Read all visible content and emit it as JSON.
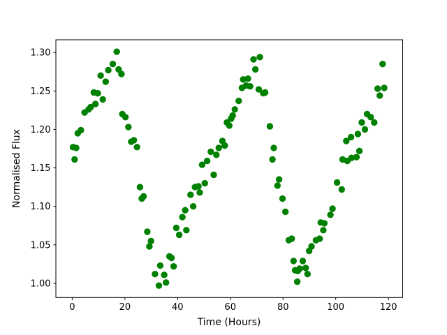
{
  "figure": {
    "background": "#ffffff"
  },
  "chart_data": {
    "type": "scatter",
    "title": "",
    "xlabel": "Time (Hours)",
    "ylabel": "Normalised Flux",
    "marker_color": "#008000",
    "marker_shape": "circle",
    "grid": false,
    "legend": "none",
    "xticks": [
      0,
      20,
      40,
      60,
      80,
      100,
      120
    ],
    "yticks": [
      1.0,
      1.05,
      1.1,
      1.15,
      1.2,
      1.25,
      1.3
    ],
    "xlim": [
      -6.2,
      125.4
    ],
    "ylim": [
      0.9815,
      1.3165
    ],
    "x_unit": "hours",
    "y_unit": "normalised flux",
    "points": [
      [
        0.3,
        1.177
      ],
      [
        0.9,
        1.161
      ],
      [
        1.5,
        1.176
      ],
      [
        2.1,
        1.195
      ],
      [
        3.3,
        1.199
      ],
      [
        4.7,
        1.222
      ],
      [
        6.2,
        1.226
      ],
      [
        7.0,
        1.229
      ],
      [
        8.2,
        1.248
      ],
      [
        8.8,
        1.233
      ],
      [
        9.7,
        1.247
      ],
      [
        10.8,
        1.27
      ],
      [
        11.6,
        1.239
      ],
      [
        12.7,
        1.262
      ],
      [
        13.7,
        1.277
      ],
      [
        15.4,
        1.285
      ],
      [
        16.9,
        1.301
      ],
      [
        17.6,
        1.278
      ],
      [
        18.7,
        1.272
      ],
      [
        19.0,
        1.22
      ],
      [
        20.2,
        1.216
      ],
      [
        21.3,
        1.203
      ],
      [
        22.4,
        1.184
      ],
      [
        23.4,
        1.186
      ],
      [
        24.6,
        1.177
      ],
      [
        25.7,
        1.125
      ],
      [
        26.4,
        1.11
      ],
      [
        27.1,
        1.113
      ],
      [
        28.5,
        1.067
      ],
      [
        29.3,
        1.048
      ],
      [
        29.9,
        1.055
      ],
      [
        31.4,
        1.012
      ],
      [
        32.9,
        0.997
      ],
      [
        33.4,
        1.023
      ],
      [
        34.9,
        1.011
      ],
      [
        35.6,
        1.001
      ],
      [
        36.9,
        1.035
      ],
      [
        37.7,
        1.033
      ],
      [
        38.5,
        1.022
      ],
      [
        39.5,
        1.072
      ],
      [
        40.6,
        1.063
      ],
      [
        41.8,
        1.086
      ],
      [
        42.9,
        1.095
      ],
      [
        43.3,
        1.069
      ],
      [
        44.9,
        1.115
      ],
      [
        45.9,
        1.1
      ],
      [
        46.6,
        1.125
      ],
      [
        47.9,
        1.126
      ],
      [
        48.4,
        1.118
      ],
      [
        49.3,
        1.154
      ],
      [
        50.3,
        1.13
      ],
      [
        51.2,
        1.159
      ],
      [
        52.6,
        1.171
      ],
      [
        53.7,
        1.141
      ],
      [
        54.7,
        1.167
      ],
      [
        55.6,
        1.176
      ],
      [
        57.0,
        1.185
      ],
      [
        57.9,
        1.179
      ],
      [
        58.7,
        1.209
      ],
      [
        59.6,
        1.205
      ],
      [
        60.3,
        1.214
      ],
      [
        60.9,
        1.218
      ],
      [
        61.7,
        1.226
      ],
      [
        63.2,
        1.237
      ],
      [
        64.4,
        1.254
      ],
      [
        64.9,
        1.265
      ],
      [
        66.0,
        1.257
      ],
      [
        66.7,
        1.266
      ],
      [
        67.5,
        1.256
      ],
      [
        68.8,
        1.291
      ],
      [
        69.5,
        1.278
      ],
      [
        71.2,
        1.294
      ],
      [
        70.8,
        1.252
      ],
      [
        72.5,
        1.247
      ],
      [
        73.2,
        1.248
      ],
      [
        75.0,
        1.204
      ],
      [
        76.0,
        1.161
      ],
      [
        76.5,
        1.176
      ],
      [
        77.9,
        1.127
      ],
      [
        78.5,
        1.135
      ],
      [
        79.8,
        1.11
      ],
      [
        80.9,
        1.093
      ],
      [
        82.2,
        1.056
      ],
      [
        83.3,
        1.058
      ],
      [
        84.0,
        1.029
      ],
      [
        84.6,
        1.017
      ],
      [
        85.4,
        1.002
      ],
      [
        85.6,
        1.016
      ],
      [
        86.3,
        1.019
      ],
      [
        87.5,
        1.029
      ],
      [
        88.6,
        1.02
      ],
      [
        89.3,
        1.012
      ],
      [
        89.9,
        1.042
      ],
      [
        90.8,
        1.048
      ],
      [
        92.5,
        1.056
      ],
      [
        93.9,
        1.058
      ],
      [
        94.3,
        1.079
      ],
      [
        95.3,
        1.069
      ],
      [
        95.7,
        1.078
      ],
      [
        98.0,
        1.089
      ],
      [
        98.8,
        1.097
      ],
      [
        100.5,
        1.131
      ],
      [
        102.3,
        1.122
      ],
      [
        102.6,
        1.161
      ],
      [
        104.0,
        1.185
      ],
      [
        104.4,
        1.159
      ],
      [
        105.8,
        1.19
      ],
      [
        106.0,
        1.163
      ],
      [
        107.9,
        1.164
      ],
      [
        108.4,
        1.194
      ],
      [
        109.0,
        1.172
      ],
      [
        109.9,
        1.209
      ],
      [
        111.1,
        1.2
      ],
      [
        111.9,
        1.22
      ],
      [
        113.3,
        1.216
      ],
      [
        114.6,
        1.209
      ],
      [
        115.9,
        1.253
      ],
      [
        116.7,
        1.244
      ],
      [
        117.8,
        1.285
      ],
      [
        118.4,
        1.254
      ]
    ]
  }
}
